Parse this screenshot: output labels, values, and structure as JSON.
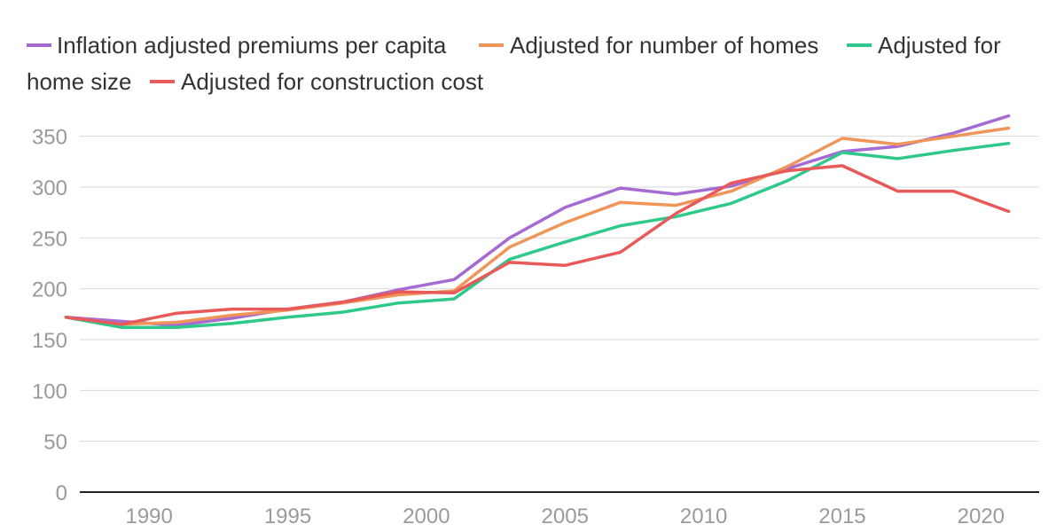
{
  "chart_data": {
    "type": "line",
    "title": "",
    "xlabel": "",
    "ylabel": "",
    "xlim": [
      1987,
      2021
    ],
    "ylim": [
      0,
      370
    ],
    "grid": true,
    "legend_position": "top-left",
    "x_ticks": [
      1990,
      1995,
      2000,
      2005,
      2010,
      2015,
      2020
    ],
    "y_ticks": [
      0,
      50,
      100,
      150,
      200,
      250,
      300,
      350
    ],
    "x": [
      1987,
      1989,
      1991,
      1993,
      1995,
      1997,
      1999,
      2001,
      2003,
      2005,
      2007,
      2009,
      2011,
      2013,
      2015,
      2017,
      2019,
      2021
    ],
    "series": [
      {
        "name": "Inflation adjusted premiums per capita",
        "color": "#a66bd3",
        "values": [
          172,
          168,
          164,
          171,
          180,
          187,
          199,
          209,
          250,
          280,
          299,
          293,
          301,
          318,
          335,
          340,
          353,
          370
        ]
      },
      {
        "name": "Adjusted for number of homes",
        "color": "#f0955a",
        "values": [
          172,
          165,
          167,
          174,
          179,
          186,
          194,
          198,
          241,
          265,
          285,
          282,
          296,
          320,
          348,
          342,
          350,
          358
        ]
      },
      {
        "name": "Adjusted for home size",
        "color": "#2ec98a",
        "values": [
          172,
          162,
          162,
          166,
          172,
          177,
          186,
          190,
          229,
          246,
          262,
          271,
          284,
          306,
          334,
          328,
          336,
          343
        ]
      },
      {
        "name": "Adjusted for construction cost",
        "color": "#e85a5a",
        "values": [
          172,
          165,
          176,
          180,
          180,
          187,
          197,
          196,
          226,
          223,
          236,
          274,
          304,
          316,
          321,
          296,
          296,
          276
        ]
      }
    ]
  }
}
